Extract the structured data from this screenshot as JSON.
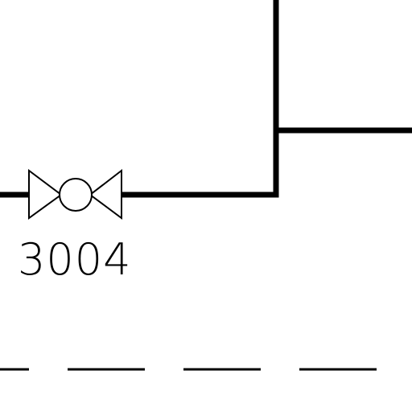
{
  "diagram": {
    "background_color": "#ffffff",
    "line_color": "#000000",
    "valve": {
      "tag": "3004",
      "icon": "gate-valve-icon"
    }
  }
}
